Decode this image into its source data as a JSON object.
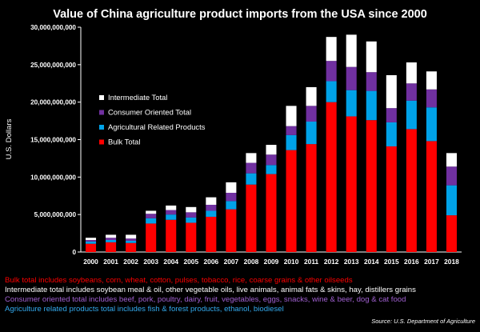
{
  "chart_data": {
    "type": "bar",
    "stacked": true,
    "title": "Value of China agriculture product imports from the USA since 2000",
    "xlabel": "",
    "ylabel": "U.S. Dollars",
    "ylim": [
      0,
      30000000000
    ],
    "yticks": [
      0,
      5000000000,
      10000000000,
      15000000000,
      20000000000,
      25000000000,
      30000000000
    ],
    "ytick_labels": [
      "0",
      "5,000,000,000",
      "10,000,000,000",
      "15,000,000,000",
      "20,000,000,000",
      "25,000,000,000",
      "30,000,000,000"
    ],
    "grid": false,
    "legend_position": "left, inside plot",
    "categories": [
      "2000",
      "2001",
      "2002",
      "2003",
      "2004",
      "2005",
      "2006",
      "2007",
      "2008",
      "2009",
      "2010",
      "2011",
      "2012",
      "2013",
      "2014",
      "2015",
      "2016",
      "2017",
      "2018"
    ],
    "series": [
      {
        "name": "Bulk Total",
        "color": "#ff0000",
        "values": [
          1100000000,
          1300000000,
          1200000000,
          3800000000,
          4300000000,
          3900000000,
          4700000000,
          5700000000,
          9000000000,
          10400000000,
          13600000000,
          14400000000,
          20000000000,
          18100000000,
          17600000000,
          14100000000,
          16400000000,
          14800000000,
          4900000000
        ]
      },
      {
        "name": "Agricultural Related Products",
        "color": "#00a2e8",
        "values": [
          300000000,
          300000000,
          300000000,
          700000000,
          700000000,
          700000000,
          800000000,
          1100000000,
          1500000000,
          1200000000,
          2000000000,
          3000000000,
          2800000000,
          3500000000,
          3900000000,
          3200000000,
          3800000000,
          4500000000,
          4000000000
        ]
      },
      {
        "name": "Consumer Oriented Total",
        "color": "#7030a0",
        "values": [
          200000000,
          300000000,
          300000000,
          600000000,
          600000000,
          700000000,
          800000000,
          1100000000,
          1400000000,
          1400000000,
          1200000000,
          2100000000,
          2700000000,
          3100000000,
          2500000000,
          1900000000,
          2300000000,
          2400000000,
          2500000000
        ]
      },
      {
        "name": "Intermediate Total",
        "color": "#ffffff",
        "values": [
          300000000,
          400000000,
          500000000,
          400000000,
          600000000,
          700000000,
          1000000000,
          1400000000,
          1300000000,
          1300000000,
          2700000000,
          2500000000,
          3200000000,
          4300000000,
          4100000000,
          4400000000,
          2800000000,
          2400000000,
          1800000000
        ]
      }
    ]
  },
  "legend_order": [
    3,
    2,
    1,
    0
  ],
  "colors": {
    "background": "#000000",
    "axis": "#ffffff"
  },
  "notes": [
    {
      "text": "Bulk total includes soybeans, corn, wheat, cotton, pulses, tobacco, rice, coarse grains & other oilseeds",
      "color": "#ff0000"
    },
    {
      "text": "Intermediate total includes soybean meal & oil, other vegetable oils, live animals, animal fats & skins, hay, distillers grains",
      "color": "#ffffff"
    },
    {
      "text": "Consumer oriented total includes beef, pork, poultry, dairy, fruit, vegetables, eggs, snacks, wine & beer, dog & cat food",
      "color": "#a060d0"
    },
    {
      "text": "Agriculture related products total includes fish & forest products, ethanol, biodiesel",
      "color": "#33aaee"
    }
  ],
  "source": "Source: U.S. Department of Agriculture"
}
